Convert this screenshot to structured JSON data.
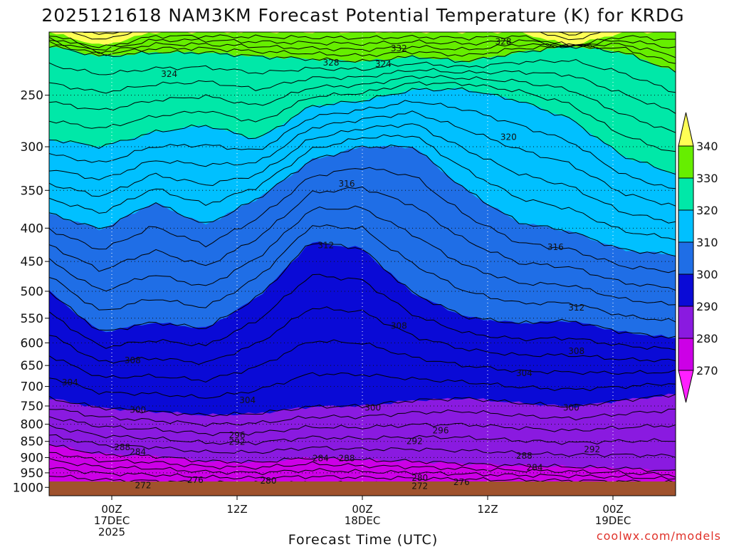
{
  "chart_data": {
    "type": "heatmap",
    "title": "2025121618 NAM3KM Forecast Potential Temperature (K) for KRDG",
    "xlabel": "Forecast Time (UTC)",
    "ylabel": "",
    "credit": "coolwx.com/models",
    "y_axis": {
      "scale": "log-pressure",
      "units": "hPa",
      "range": [
        1030,
        200
      ],
      "ticks": [
        250,
        300,
        350,
        400,
        450,
        500,
        550,
        600,
        650,
        700,
        750,
        800,
        850,
        900,
        950,
        1000
      ],
      "tick_labels": [
        "250",
        "300",
        "350",
        "400",
        "450",
        "500",
        "550",
        "600",
        "650",
        "700",
        "750",
        "800",
        "850",
        "900",
        "950",
        "1000"
      ]
    },
    "x_axis": {
      "units": "hours from 2025-12-16 18Z",
      "range": [
        0,
        60
      ],
      "ticks": [
        {
          "hour": 6,
          "lines": [
            "00Z",
            "17DEC",
            "2025"
          ]
        },
        {
          "hour": 18,
          "lines": [
            "12Z"
          ]
        },
        {
          "hour": 30,
          "lines": [
            "00Z",
            "18DEC"
          ]
        },
        {
          "hour": 42,
          "lines": [
            "12Z"
          ]
        },
        {
          "hour": 54,
          "lines": [
            "00Z",
            "19DEC"
          ]
        }
      ]
    },
    "colorbar": {
      "units": "K",
      "levels": [
        270,
        280,
        290,
        300,
        310,
        320,
        330,
        340
      ],
      "labels": [
        "270",
        "280",
        "290",
        "300",
        "310",
        "320",
        "330",
        "340"
      ],
      "colors": [
        "#ff20ff",
        "#cc00e6",
        "#8a1ae0",
        "#0a0ad6",
        "#1f6ee6",
        "#00c0ff",
        "#00e8a8",
        "#66ee00",
        "#ffff55"
      ]
    },
    "series": [
      {
        "name": "340 K",
        "pressure": [
          200,
          210,
          200,
          200,
          200,
          200,
          200,
          200,
          200,
          200,
          210,
          200,
          200
        ]
      },
      {
        "name": "330 K",
        "pressure": [
          210,
          218,
          215,
          215,
          218,
          220,
          222,
          218,
          222,
          215,
          210,
          215,
          230
        ]
      },
      {
        "name": "320 K",
        "pressure": [
          292,
          300,
          285,
          278,
          292,
          260,
          255,
          245,
          245,
          255,
          272,
          310,
          330
        ]
      },
      {
        "name": "310 K",
        "pressure": [
          380,
          402,
          365,
          395,
          360,
          315,
          300,
          300,
          350,
          392,
          405,
          432,
          440
        ]
      },
      {
        "name": "300 K",
        "pressure": [
          500,
          578,
          558,
          570,
          510,
          420,
          430,
          505,
          548,
          560,
          555,
          578,
          590
        ]
      },
      {
        "name": "290 K",
        "pressure": [
          730,
          755,
          765,
          775,
          770,
          752,
          750,
          735,
          730,
          742,
          752,
          735,
          720
        ]
      },
      {
        "name": "280 K",
        "pressure": [
          860,
          890,
          895,
          912,
          915,
          900,
          908,
          912,
          920,
          926,
          930,
          935,
          945
        ]
      },
      {
        "name": "270 K",
        "pressure": [
          985,
          996,
          999,
          1002,
          1004,
          1006,
          1006,
          1008,
          1008,
          1008,
          1008,
          1009,
          1010
        ]
      }
    ],
    "series_hours": [
      0,
      5,
      10,
      15,
      20,
      25,
      30,
      35,
      40,
      45,
      50,
      55,
      60
    ],
    "contour_labels": [
      {
        "text": "332",
        "hour": 33.5,
        "pressure": 212
      },
      {
        "text": "328",
        "hour": 43.5,
        "pressure": 207
      },
      {
        "text": "328",
        "hour": 27,
        "pressure": 223
      },
      {
        "text": "324",
        "hour": 32,
        "pressure": 224
      },
      {
        "text": "324",
        "hour": 11.5,
        "pressure": 232
      },
      {
        "text": "320",
        "hour": 44,
        "pressure": 290
      },
      {
        "text": "316",
        "hour": 28.5,
        "pressure": 342
      },
      {
        "text": "316",
        "hour": 48.5,
        "pressure": 428
      },
      {
        "text": "312",
        "hour": 26.5,
        "pressure": 425
      },
      {
        "text": "312",
        "hour": 50.5,
        "pressure": 530
      },
      {
        "text": "308",
        "hour": 33.5,
        "pressure": 565
      },
      {
        "text": "308",
        "hour": 50.5,
        "pressure": 618
      },
      {
        "text": "308",
        "hour": 8,
        "pressure": 638
      },
      {
        "text": "304",
        "hour": 45.5,
        "pressure": 668
      },
      {
        "text": "304",
        "hour": 2,
        "pressure": 690
      },
      {
        "text": "304",
        "hour": 19,
        "pressure": 735
      },
      {
        "text": "300",
        "hour": 8.5,
        "pressure": 760
      },
      {
        "text": "300",
        "hour": 31,
        "pressure": 755
      },
      {
        "text": "300",
        "hour": 50,
        "pressure": 755
      },
      {
        "text": "296",
        "hour": 18,
        "pressure": 832
      },
      {
        "text": "296",
        "hour": 37.5,
        "pressure": 818
      },
      {
        "text": "292",
        "hour": 18,
        "pressure": 852
      },
      {
        "text": "292",
        "hour": 35,
        "pressure": 850
      },
      {
        "text": "292",
        "hour": 52,
        "pressure": 875
      },
      {
        "text": "288",
        "hour": 7,
        "pressure": 868
      },
      {
        "text": "288",
        "hour": 28.5,
        "pressure": 902
      },
      {
        "text": "288",
        "hour": 45.5,
        "pressure": 895
      },
      {
        "text": "284",
        "hour": 8.5,
        "pressure": 882
      },
      {
        "text": "284",
        "hour": 26,
        "pressure": 902
      },
      {
        "text": "284",
        "hour": 46.5,
        "pressure": 932
      },
      {
        "text": "280",
        "hour": 35.5,
        "pressure": 967
      },
      {
        "text": "280",
        "hour": 21,
        "pressure": 977
      },
      {
        "text": "276",
        "hour": 14,
        "pressure": 975
      },
      {
        "text": "276",
        "hour": 39.5,
        "pressure": 982
      },
      {
        "text": "272",
        "hour": 9,
        "pressure": 993
      },
      {
        "text": "272",
        "hour": 35.5,
        "pressure": 995
      }
    ]
  }
}
